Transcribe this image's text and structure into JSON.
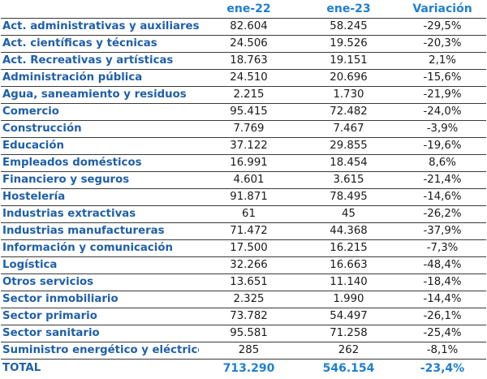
{
  "table": {
    "headers": [
      "",
      "ene-22",
      "ene-23",
      "Variación"
    ],
    "rows": [
      {
        "sector": "Act. administrativas y auxiliares",
        "ene22": "82.604",
        "ene23": "58.245",
        "variacion": "-29,5%"
      },
      {
        "sector": "Act. científicas y técnicas",
        "ene22": "24.506",
        "ene23": "19.526",
        "variacion": "-20,3%"
      },
      {
        "sector": "Act. Recreativas y artísticas",
        "ene22": "18.763",
        "ene23": "19.151",
        "variacion": "2,1%"
      },
      {
        "sector": "Administración pública",
        "ene22": "24.510",
        "ene23": "20.696",
        "variacion": "-15,6%"
      },
      {
        "sector": "Agua, saneamiento y residuos",
        "ene22": "2.215",
        "ene23": "1.730",
        "variacion": "-21,9%"
      },
      {
        "sector": "Comercio",
        "ene22": "95.415",
        "ene23": "72.482",
        "variacion": "-24,0%"
      },
      {
        "sector": "Construcción",
        "ene22": "7.769",
        "ene23": "7.467",
        "variacion": "-3,9%"
      },
      {
        "sector": "Educación",
        "ene22": "37.122",
        "ene23": "29.855",
        "variacion": "-19,6%"
      },
      {
        "sector": "Empleados domésticos",
        "ene22": "16.991",
        "ene23": "18.454",
        "variacion": "8,6%"
      },
      {
        "sector": "Financiero y seguros",
        "ene22": "4.601",
        "ene23": "3.615",
        "variacion": "-21,4%"
      },
      {
        "sector": "Hostelería",
        "ene22": "91.871",
        "ene23": "78.495",
        "variacion": "-14,6%"
      },
      {
        "sector": "Industrias extractivas",
        "ene22": "61",
        "ene23": "45",
        "variacion": "-26,2%"
      },
      {
        "sector": "Industrias manufactureras",
        "ene22": "71.472",
        "ene23": "44.368",
        "variacion": "-37,9%"
      },
      {
        "sector": "Información y comunicación",
        "ene22": "17.500",
        "ene23": "16.215",
        "variacion": "-7,3%"
      },
      {
        "sector": "Logística",
        "ene22": "32.266",
        "ene23": "16.663",
        "variacion": "-48,4%"
      },
      {
        "sector": "Otros servicios",
        "ene22": "13.651",
        "ene23": "11.140",
        "variacion": "-18,4%"
      },
      {
        "sector": "Sector inmobiliario",
        "ene22": "2.325",
        "ene23": "1.990",
        "variacion": "-14,4%"
      },
      {
        "sector": "Sector primario",
        "ene22": "73.782",
        "ene23": "54.497",
        "variacion": "-26,1%"
      },
      {
        "sector": "Sector sanitario",
        "ene22": "95.581",
        "ene23": "71.258",
        "variacion": "-25,4%"
      },
      {
        "sector": "Suministro energético y eléctrico",
        "ene22": "285",
        "ene23": "262",
        "variacion": "-8,1%"
      }
    ],
    "total": {
      "sector": "TOTAL",
      "ene22": "713.290",
      "ene23": "546.154",
      "variacion": "-23,4%"
    }
  }
}
